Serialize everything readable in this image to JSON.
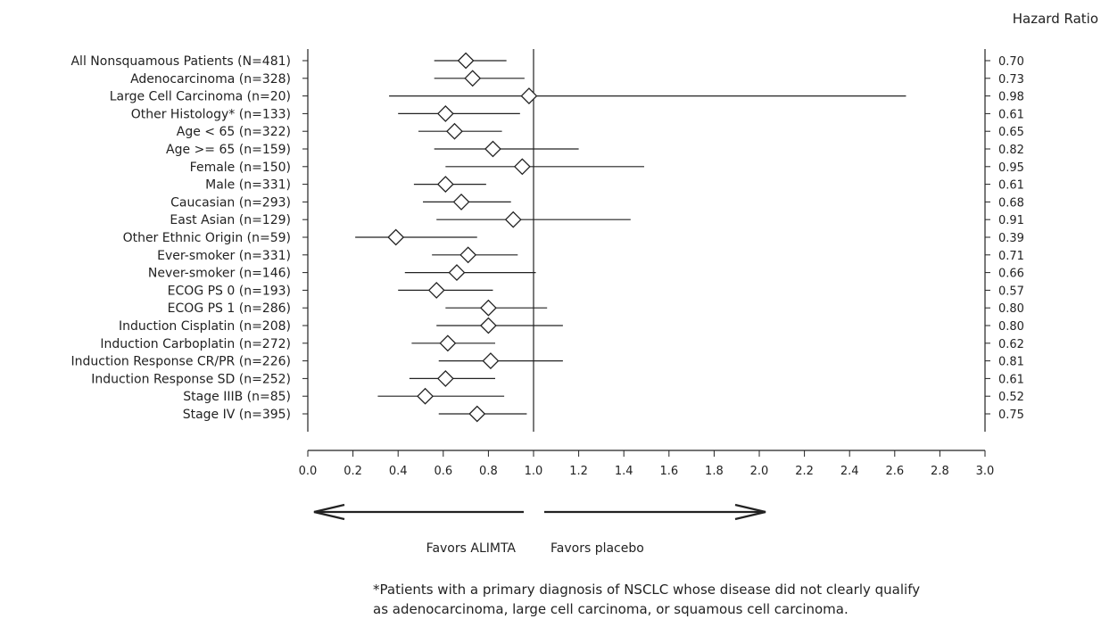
{
  "chart_data": {
    "type": "forest",
    "column_header": "Hazard Ratio",
    "x_ticks": [
      "0.0",
      "0.2",
      "0.4",
      "0.6",
      "0.8",
      "1.0",
      "1.2",
      "1.4",
      "1.6",
      "1.8",
      "2.0",
      "2.2",
      "2.4",
      "2.6",
      "2.8",
      "3.0"
    ],
    "xlim": [
      0,
      3
    ],
    "reference_line": 1.0,
    "rows": [
      {
        "label": "All Nonsquamous Patients (N=481)",
        "hr": 0.7,
        "ci": [
          0.56,
          0.88
        ],
        "hr_text": "0.70"
      },
      {
        "label": "Adenocarcinoma (n=328)",
        "hr": 0.73,
        "ci": [
          0.56,
          0.96
        ],
        "hr_text": "0.73"
      },
      {
        "label": "Large Cell Carcinoma (n=20)",
        "hr": 0.98,
        "ci": [
          0.36,
          2.65
        ],
        "hr_text": "0.98"
      },
      {
        "label": "Other Histology* (n=133)",
        "hr": 0.61,
        "ci": [
          0.4,
          0.94
        ],
        "hr_text": "0.61"
      },
      {
        "label": "Age < 65 (n=322)",
        "hr": 0.65,
        "ci": [
          0.49,
          0.86
        ],
        "hr_text": "0.65"
      },
      {
        "label": "Age >= 65 (n=159)",
        "hr": 0.82,
        "ci": [
          0.56,
          1.2
        ],
        "hr_text": "0.82"
      },
      {
        "label": "Female (n=150)",
        "hr": 0.95,
        "ci": [
          0.61,
          1.49
        ],
        "hr_text": "0.95"
      },
      {
        "label": "Male (n=331)",
        "hr": 0.61,
        "ci": [
          0.47,
          0.79
        ],
        "hr_text": "0.61"
      },
      {
        "label": "Caucasian (n=293)",
        "hr": 0.68,
        "ci": [
          0.51,
          0.9
        ],
        "hr_text": "0.68"
      },
      {
        "label": "East Asian (n=129)",
        "hr": 0.91,
        "ci": [
          0.57,
          1.43
        ],
        "hr_text": "0.91"
      },
      {
        "label": "Other Ethnic Origin (n=59)",
        "hr": 0.39,
        "ci": [
          0.21,
          0.75
        ],
        "hr_text": "0.39"
      },
      {
        "label": "Ever-smoker (n=331)",
        "hr": 0.71,
        "ci": [
          0.55,
          0.93
        ],
        "hr_text": "0.71"
      },
      {
        "label": "Never-smoker (n=146)",
        "hr": 0.66,
        "ci": [
          0.43,
          1.01
        ],
        "hr_text": "0.66"
      },
      {
        "label": "ECOG PS 0 (n=193)",
        "hr": 0.57,
        "ci": [
          0.4,
          0.82
        ],
        "hr_text": "0.57"
      },
      {
        "label": "ECOG PS 1 (n=286)",
        "hr": 0.8,
        "ci": [
          0.61,
          1.06
        ],
        "hr_text": "0.80"
      },
      {
        "label": "Induction Cisplatin (n=208)",
        "hr": 0.8,
        "ci": [
          0.57,
          1.13
        ],
        "hr_text": "0.80"
      },
      {
        "label": "Induction Carboplatin (n=272)",
        "hr": 0.62,
        "ci": [
          0.46,
          0.83
        ],
        "hr_text": "0.62"
      },
      {
        "label": "Induction Response CR/PR (n=226)",
        "hr": 0.81,
        "ci": [
          0.58,
          1.13
        ],
        "hr_text": "0.81"
      },
      {
        "label": "Induction Response SD (n=252)",
        "hr": 0.61,
        "ci": [
          0.45,
          0.83
        ],
        "hr_text": "0.61"
      },
      {
        "label": "Stage IIIB (n=85)",
        "hr": 0.52,
        "ci": [
          0.31,
          0.87
        ],
        "hr_text": "0.52"
      },
      {
        "label": "Stage IV (n=395)",
        "hr": 0.75,
        "ci": [
          0.58,
          0.97
        ],
        "hr_text": "0.75"
      }
    ],
    "arrows": {
      "left_label": "Favors ALIMTA",
      "right_label": "Favors placebo"
    },
    "grid": false
  },
  "footnote": {
    "line1": "*Patients with a primary diagnosis of NSCLC whose disease did not clearly qualify",
    "line2": "as adenocarcinoma, large cell carcinoma, or squamous cell carcinoma."
  },
  "colors": {
    "ink": "#222222",
    "marker_fill": "#ffffff"
  }
}
